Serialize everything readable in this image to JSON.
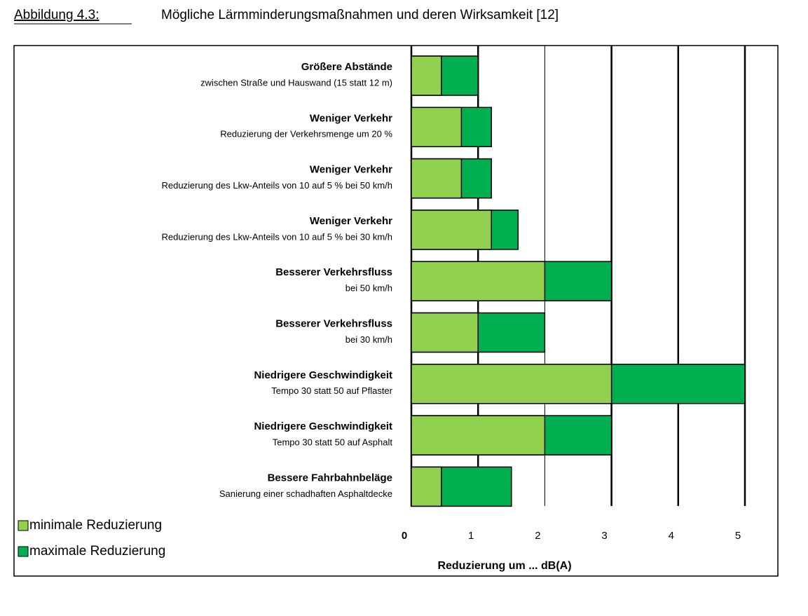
{
  "chart_data": {
    "type": "range-bar",
    "caption_label": "Abbildung 4.3:",
    "title": "Mögliche Lärmminderungsmaßnahmen und deren Wirksamkeit [12]",
    "x_label": "Reduzierung um ... dB(A)",
    "categories": [
      "Größere Abstände",
      "Weniger Verkehr",
      "Weniger Verkehr",
      "Weniger Verkehr",
      "Besserer Verkehrsfluss",
      "Besserer Verkehrsfluss",
      "Niedrigere Geschwindigkeit",
      "Niedrigere Geschwindigkeit",
      "Bessere Fahrbahnbeläge"
    ],
    "subtitles": [
      "zwischen Straße und Hauswand (15 statt 12 m)",
      "Reduzierung der Verkehrsmenge um 20 %",
      "Reduzierung des Lkw-Anteils von 10 auf 5 % bei 50 km/h",
      "Reduzierung des Lkw-Anteils von 10 auf 5 % bei 30 km/h",
      "bei 50 km/h",
      "bei 30 km/h",
      "Tempo 30 statt 50 auf Pflaster",
      "Tempo 30 statt 50 auf Asphalt",
      "Sanierung einer schadhaften Asphaltdecke"
    ],
    "series": [
      {
        "name": "minimale Reduzierung",
        "color": "#92d050",
        "values": [
          0.45,
          0.75,
          0.75,
          1.2,
          2,
          1,
          3,
          2,
          0.45
        ]
      },
      {
        "name": "maximale Reduzierung",
        "color": "#00b050",
        "values": [
          1,
          1.2,
          1.2,
          1.6,
          3,
          2,
          5,
          3,
          1.5
        ]
      }
    ],
    "xlim": [
      0,
      5
    ],
    "xticks": [
      0,
      1,
      2,
      3,
      4,
      5
    ],
    "grid": true,
    "legend": "bottom-left"
  }
}
